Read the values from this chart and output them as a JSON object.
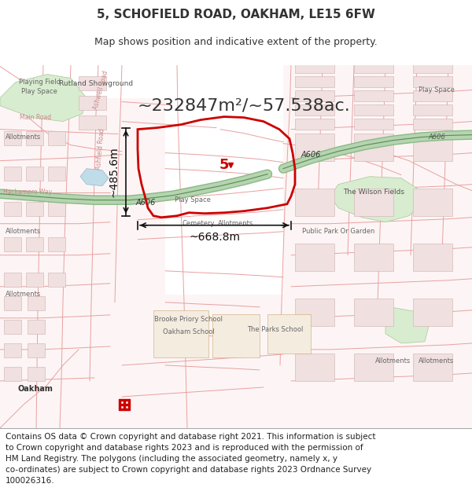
{
  "title": "5, SCHOFIELD ROAD, OAKHAM, LE15 6FW",
  "subtitle": "Map shows position and indicative extent of the property.",
  "footer_line1": "Contains OS data © Crown copyright and database right 2021. This information is subject",
  "footer_line2": "to Crown copyright and database rights 2023 and is reproduced with the permission of",
  "footer_line3": "HM Land Registry. The polygons (including the associated geometry, namely x, y",
  "footer_line4": "co-ordinates) are subject to Crown copyright and database rights 2023 Ordnance Survey",
  "footer_line5": "100026316.",
  "map_bg": "#ffffff",
  "highlight_color": "#cc0000",
  "green_road_fill": "#b8d8b0",
  "green_road_edge": "#7aaa70",
  "road_pink": "#e8a0a0",
  "text_color": "#333333",
  "title_fontsize": 11,
  "subtitle_fontsize": 9,
  "footer_fontsize": 7.5,
  "area_text": "~232847m²/~57.538ac.",
  "width_text": "~668.8m",
  "height_text": "~485.6m",
  "plot_number": "5",
  "road_label_A606": "A606",
  "meas_color": "#111111"
}
